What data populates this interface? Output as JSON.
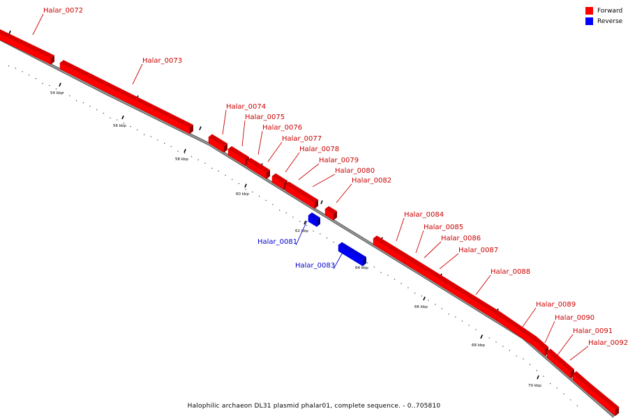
{
  "caption": "Halophilic archaeon DL31 plasmid phalar01, complete sequence. - 0..705810",
  "legend": {
    "forward": {
      "label": "Forward",
      "color": "#ff0000"
    },
    "reverse": {
      "label": "Reverse",
      "color": "#0000ff"
    }
  },
  "colors": {
    "backbone": "#999999",
    "forward_label": "#cc0000",
    "reverse_label": "#0000cc",
    "tick": "#000000"
  },
  "scale_labels": [
    "54 kbp",
    "56 kbp",
    "58 kbp",
    "60 kbp",
    "62 kbp",
    "64 kbp",
    "66 kbp",
    "68 kbp",
    "70 kbp"
  ],
  "genes": [
    {
      "name": "Halar_0072",
      "strand": "forward"
    },
    {
      "name": "Halar_0073",
      "strand": "forward"
    },
    {
      "name": "Halar_0074",
      "strand": "forward"
    },
    {
      "name": "Halar_0075",
      "strand": "forward"
    },
    {
      "name": "Halar_0076",
      "strand": "forward"
    },
    {
      "name": "Halar_0077",
      "strand": "forward"
    },
    {
      "name": "Halar_0078",
      "strand": "forward"
    },
    {
      "name": "Halar_0079",
      "strand": "forward"
    },
    {
      "name": "Halar_0080",
      "strand": "forward"
    },
    {
      "name": "Halar_0081",
      "strand": "reverse"
    },
    {
      "name": "Halar_0082",
      "strand": "forward"
    },
    {
      "name": "Halar_0083",
      "strand": "reverse"
    },
    {
      "name": "Halar_0084",
      "strand": "forward"
    },
    {
      "name": "Halar_0085",
      "strand": "forward"
    },
    {
      "name": "Halar_0086",
      "strand": "forward"
    },
    {
      "name": "Halar_0087",
      "strand": "forward"
    },
    {
      "name": "Halar_0088",
      "strand": "forward"
    },
    {
      "name": "Halar_0089",
      "strand": "forward"
    },
    {
      "name": "Halar_0090",
      "strand": "forward"
    },
    {
      "name": "Halar_0091",
      "strand": "forward"
    },
    {
      "name": "Halar_0092",
      "strand": "forward"
    }
  ]
}
